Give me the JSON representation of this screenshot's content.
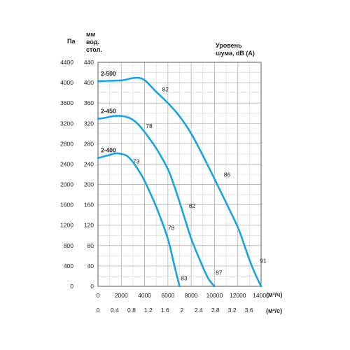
{
  "chart_data": {
    "type": "line",
    "headers": {
      "left_units": "Па",
      "mid_units": [
        "мм",
        "вод.",
        "стол."
      ],
      "noise_title": [
        "Уровень",
        "шума, dB (A)"
      ],
      "x_unit_top": "(м³/ч)",
      "x_unit_bottom": "(м³/с)"
    },
    "y_pa_ticks": [
      "0",
      "400",
      "800",
      "1200",
      "1600",
      "2000",
      "2400",
      "2800",
      "3200",
      "3600",
      "4000",
      "4400"
    ],
    "y_mm_ticks": [
      "0",
      "40",
      "80",
      "120",
      "160",
      "200",
      "240",
      "280",
      "320",
      "360",
      "400",
      "440"
    ],
    "x_m3h_ticks": [
      "0",
      "2000",
      "4000",
      "6000",
      "8000",
      "10000",
      "12000",
      "14000"
    ],
    "x_m3s_ticks": [
      "0",
      "0.4",
      "0.8",
      "1.2",
      "1.6",
      "2",
      "2.4",
      "2.8",
      "3.2",
      "3.6"
    ],
    "xlim": [
      0,
      14000
    ],
    "ylim": [
      0,
      4400
    ],
    "grid": true,
    "line_color": "#1aa3dc",
    "series": [
      {
        "name": "2-500",
        "x": [
          0,
          1000,
          2000,
          2500,
          3000,
          3500,
          4000,
          4500,
          5000,
          6000,
          7000,
          8000,
          9000,
          10000,
          11000,
          12000,
          12500,
          13000,
          13500,
          14000
        ],
        "y": [
          4030,
          4035,
          4045,
          4065,
          4090,
          4095,
          4050,
          3940,
          3820,
          3600,
          3340,
          3000,
          2570,
          2110,
          1640,
          1160,
          850,
          520,
          240,
          0
        ],
        "noise": [
          {
            "x": 5500,
            "y": 3830,
            "label": "82"
          },
          {
            "x": 10800,
            "y": 2150,
            "label": "86"
          },
          {
            "x": 13900,
            "y": 460,
            "label": "91"
          }
        ]
      },
      {
        "name": "2-450",
        "x": [
          0,
          500,
          1000,
          1500,
          2000,
          2500,
          3000,
          3500,
          4000,
          5000,
          6000,
          6500,
          7000,
          8000,
          9000,
          9500,
          10000
        ],
        "y": [
          3290,
          3305,
          3330,
          3345,
          3345,
          3325,
          3270,
          3170,
          3030,
          2710,
          2300,
          2000,
          1660,
          940,
          380,
          140,
          0
        ],
        "noise": [
          {
            "x": 4100,
            "y": 3110,
            "label": "78"
          },
          {
            "x": 7800,
            "y": 1540,
            "label": "82"
          },
          {
            "x": 10100,
            "y": 230,
            "label": "87"
          }
        ]
      },
      {
        "name": "2-400",
        "x": [
          0,
          500,
          1000,
          1500,
          2000,
          2500,
          3000,
          3500,
          4000,
          5000,
          6000,
          6500,
          7000
        ],
        "y": [
          2520,
          2550,
          2580,
          2610,
          2600,
          2560,
          2440,
          2270,
          2070,
          1560,
          930,
          460,
          0
        ],
        "noise": [
          {
            "x": 3000,
            "y": 2410,
            "label": "73"
          },
          {
            "x": 6000,
            "y": 1110,
            "label": "78"
          },
          {
            "x": 7100,
            "y": 120,
            "label": "83"
          }
        ]
      }
    ]
  }
}
